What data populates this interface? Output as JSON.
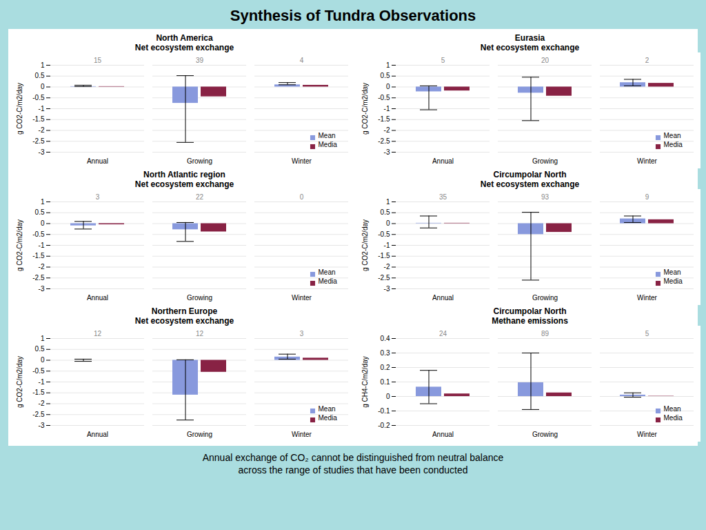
{
  "title": "Synthesis of Tundra Observations",
  "annotations": [
    "Annual exchange of CO₂ cannot be distinguished from neutral balance",
    "across the range of studies that have been conducted"
  ],
  "chart_data": [
    {
      "type": "bar",
      "title": "North America",
      "subtitle": "Net ecosystem exchange",
      "ylabel": "g CO2-C/m2/day",
      "categories": [
        "Annual",
        "Growing",
        "Winter"
      ],
      "series": [
        {
          "name": "Mean",
          "color": "#8899dd",
          "values": [
            0.02,
            -0.75,
            0.1
          ],
          "whisker_low": [
            0.02,
            -2.55,
            0.1
          ],
          "whisker_high": [
            0.08,
            0.52,
            0.2
          ]
        },
        {
          "name": "Media",
          "color": "#882244",
          "values": [
            0.02,
            -0.45,
            0.08
          ]
        }
      ],
      "counts": [
        15,
        39,
        4
      ],
      "ylim": [
        -3,
        1
      ],
      "yticks": [
        1,
        0.5,
        0,
        -0.5,
        -1,
        -1.5,
        -2,
        -2.5,
        -3
      ],
      "grid": true,
      "legend": "lower right"
    },
    {
      "type": "bar",
      "title": "Eurasia",
      "subtitle": "Net ecosystem exchange",
      "ylabel": "g CO2-C/m2/day",
      "categories": [
        "Annual",
        "Growing",
        "Winter"
      ],
      "series": [
        {
          "name": "Mean",
          "color": "#8899dd",
          "values": [
            -0.22,
            -0.28,
            0.2
          ],
          "whisker_low": [
            -1.05,
            -1.55,
            0.05
          ],
          "whisker_high": [
            0.05,
            0.45,
            0.35
          ]
        },
        {
          "name": "Media",
          "color": "#882244",
          "values": [
            -0.18,
            -0.42,
            0.17
          ]
        }
      ],
      "counts": [
        5,
        20,
        2
      ],
      "ylim": [
        -3,
        1
      ],
      "yticks": [
        1,
        0.5,
        0,
        -0.5,
        -1,
        -1.5,
        -2,
        -2.5,
        -3
      ],
      "grid": true,
      "legend": "lower right"
    },
    {
      "type": "bar",
      "title": "North Atlantic region",
      "subtitle": "Net ecosystem exchange",
      "ylabel": "g CO2-C/m2/day",
      "categories": [
        "Annual",
        "Growing",
        "Winter"
      ],
      "series": [
        {
          "name": "Mean",
          "color": "#8899dd",
          "values": [
            -0.1,
            -0.28,
            0.0
          ],
          "whisker_low": [
            -0.25,
            -0.82,
            null
          ],
          "whisker_high": [
            0.1,
            0.05,
            null
          ]
        },
        {
          "name": "Media",
          "color": "#882244",
          "values": [
            -0.05,
            -0.38,
            0.0
          ]
        }
      ],
      "counts": [
        3,
        22,
        0
      ],
      "ylim": [
        -3,
        1
      ],
      "yticks": [
        1,
        0.5,
        0,
        -0.5,
        -1,
        -1.5,
        -2,
        -2.5,
        -3
      ],
      "grid": true,
      "legend": "lower right"
    },
    {
      "type": "bar",
      "title": "Circumpolar North",
      "subtitle": "Net ecosystem exchange",
      "ylabel": "g CO2-C/m2/day",
      "categories": [
        "Annual",
        "Growing",
        "Winter"
      ],
      "series": [
        {
          "name": "Mean",
          "color": "#8899dd",
          "values": [
            0.02,
            -0.5,
            0.22
          ],
          "whisker_low": [
            -0.2,
            -2.6,
            0.05
          ],
          "whisker_high": [
            0.35,
            0.52,
            0.35
          ]
        },
        {
          "name": "Media",
          "color": "#882244",
          "values": [
            0.02,
            -0.4,
            0.18
          ]
        }
      ],
      "counts": [
        35,
        93,
        9
      ],
      "ylim": [
        -3,
        1
      ],
      "yticks": [
        1,
        0.5,
        0,
        -0.5,
        -1,
        -1.5,
        -2,
        -2.5,
        -3
      ],
      "grid": true,
      "legend": "lower right"
    },
    {
      "type": "bar",
      "title": "Northern Europe",
      "subtitle": "Net ecosystem exchange",
      "ylabel": "g CO2-C/m2/day",
      "categories": [
        "Annual",
        "Growing",
        "Winter"
      ],
      "series": [
        {
          "name": "Mean",
          "color": "#8899dd",
          "values": [
            0.0,
            -1.6,
            0.15
          ],
          "whisker_low": [
            -0.05,
            -2.75,
            0.05
          ],
          "whisker_high": [
            0.05,
            0.02,
            0.28
          ]
        },
        {
          "name": "Media",
          "color": "#882244",
          "values": [
            0.0,
            -0.55,
            0.1
          ]
        }
      ],
      "counts": [
        12,
        12,
        3
      ],
      "ylim": [
        -3,
        1
      ],
      "yticks": [
        1,
        0.5,
        0,
        -0.5,
        -1,
        -1.5,
        -2,
        -2.5,
        -3
      ],
      "grid": true,
      "legend": "lower right"
    },
    {
      "type": "bar",
      "title": "Circumpolar North",
      "subtitle": "Methane emissions",
      "ylabel": "g CH4-C/m2/day",
      "categories": [
        "Annual",
        "Growing",
        "Winter"
      ],
      "series": [
        {
          "name": "Mean",
          "color": "#8899dd",
          "values": [
            0.065,
            0.095,
            0.01
          ],
          "whisker_low": [
            -0.05,
            -0.09,
            -0.005
          ],
          "whisker_high": [
            0.18,
            0.3,
            0.025
          ]
        },
        {
          "name": "Media",
          "color": "#882244",
          "values": [
            0.018,
            0.025,
            0.002
          ]
        }
      ],
      "counts": [
        24,
        89,
        5
      ],
      "ylim": [
        -0.2,
        0.4
      ],
      "yticks": [
        0.4,
        0.3,
        0.2,
        0.1,
        0,
        -0.1,
        -0.2
      ],
      "grid": true,
      "legend": "lower right"
    }
  ]
}
